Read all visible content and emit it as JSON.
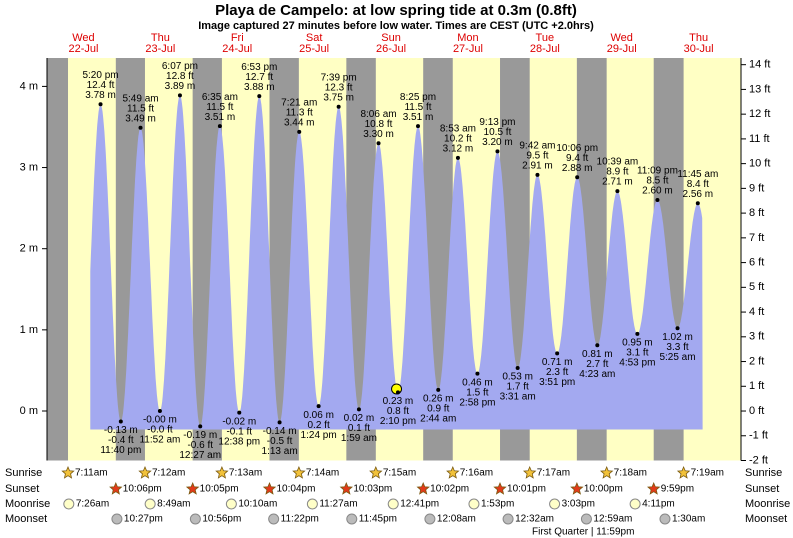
{
  "header": {
    "title": "Playa de Campelo: at low  spring tide at 0.3m (0.8ft)",
    "subtitle": "Image captured 27 minutes before low water. Times are CEST (UTC +2.0hrs)"
  },
  "chart_data": {
    "type": "area",
    "color": "#a3a9f0",
    "ylim": [
      -0.61,
      4.35
    ],
    "yticks": [
      {
        "value": 0,
        "label": "0 m"
      },
      {
        "value": 1,
        "label": "1 m"
      },
      {
        "value": 2,
        "label": "2 m"
      },
      {
        "value": 3,
        "label": "3 m"
      },
      {
        "value": 4,
        "label": "4 m"
      }
    ],
    "y2lim": [
      -2,
      14.27
    ],
    "y2ticks": [
      {
        "value": -2,
        "label": "-2 ft"
      },
      {
        "value": -1,
        "label": "-1 ft"
      },
      {
        "value": 0,
        "label": "0 ft"
      },
      {
        "value": 1,
        "label": "1 ft"
      },
      {
        "value": 2,
        "label": "2 ft"
      },
      {
        "value": 3,
        "label": "3 ft"
      },
      {
        "value": 4,
        "label": "4 ft"
      },
      {
        "value": 5,
        "label": "5 ft"
      },
      {
        "value": 6,
        "label": "6 ft"
      },
      {
        "value": 7,
        "label": "7 ft"
      },
      {
        "value": 8,
        "label": "8 ft"
      },
      {
        "value": 9,
        "label": "9 ft"
      },
      {
        "value": 10,
        "label": "10 ft"
      },
      {
        "value": 11,
        "label": "11 ft"
      },
      {
        "value": 12,
        "label": "12 ft"
      },
      {
        "value": 13,
        "label": "13 ft"
      },
      {
        "value": 14,
        "label": "14 ft"
      }
    ],
    "row_labels": [
      "Sunrise",
      "Sunset",
      "Moonrise",
      "Moonset"
    ],
    "days": [
      {
        "day": "Wed",
        "date": "22-Jul",
        "sunrise": "7:11am",
        "sunset": "10:06pm",
        "moonrise": "7:26am",
        "moonset": "10:27pm",
        "tides": [
          {
            "time": "5:20 pm",
            "m": 3.78,
            "m_label": "3.78 m",
            "ft": 12.4,
            "ft_label": "12.4 ft"
          },
          {
            "time": "11:40 pm",
            "m": -0.13,
            "m_label": "-0.13 m",
            "ft": -0.4,
            "ft_label": "-0.4 ft"
          }
        ]
      },
      {
        "day": "Thu",
        "date": "23-Jul",
        "sunrise": "7:12am",
        "sunset": "10:05pm",
        "moonrise": "8:49am",
        "moonset": "10:56pm",
        "tides": [
          {
            "time": "5:49 am",
            "m": 3.49,
            "m_label": "3.49 m",
            "ft": 11.5,
            "ft_label": "11.5 ft"
          },
          {
            "time": "11:52 am",
            "m": -0.0,
            "m_label": "-0.00 m",
            "ft": -0.0,
            "ft_label": "-0.0 ft"
          },
          {
            "time": "6:07 pm",
            "m": 3.89,
            "m_label": "3.89 m",
            "ft": 12.8,
            "ft_label": "12.8 ft"
          }
        ]
      },
      {
        "day": "Fri",
        "date": "24-Jul",
        "sunrise": "7:13am",
        "sunset": "10:04pm",
        "moonrise": "10:10am",
        "moonset": "11:22pm",
        "tides": [
          {
            "time": "12:27 am",
            "m": -0.19,
            "m_label": "-0.19 m",
            "ft": -0.6,
            "ft_label": "-0.6 ft"
          },
          {
            "time": "6:35 am",
            "m": 3.51,
            "m_label": "3.51 m",
            "ft": 11.5,
            "ft_label": "11.5 ft"
          },
          {
            "time": "12:38 pm",
            "m": -0.02,
            "m_label": "-0.02 m",
            "ft": -0.1,
            "ft_label": "-0.1 ft"
          },
          {
            "time": "6:53 pm",
            "m": 3.88,
            "m_label": "3.88 m",
            "ft": 12.7,
            "ft_label": "12.7 ft"
          }
        ]
      },
      {
        "day": "Sat",
        "date": "25-Jul",
        "sunrise": "7:14am",
        "sunset": "10:03pm",
        "moonrise": "11:27am",
        "moonset": "11:45pm",
        "tides": [
          {
            "time": "1:13 am",
            "m": -0.14,
            "m_label": "-0.14 m",
            "ft": -0.5,
            "ft_label": "-0.5 ft"
          },
          {
            "time": "7:21 am",
            "m": 3.44,
            "m_label": "3.44 m",
            "ft": 11.3,
            "ft_label": "11.3 ft"
          },
          {
            "time": "1:24 pm",
            "m": 0.06,
            "m_label": "0.06 m",
            "ft": 0.2,
            "ft_label": "0.2 ft"
          },
          {
            "time": "7:39 pm",
            "m": 3.75,
            "m_label": "3.75 m",
            "ft": 12.3,
            "ft_label": "12.3 ft"
          }
        ]
      },
      {
        "day": "Sun",
        "date": "26-Jul",
        "sunrise": "7:15am",
        "sunset": "10:02pm",
        "moonrise": "12:41pm",
        "moonset": null,
        "tides": [
          {
            "time": "1:59 am",
            "m": 0.02,
            "m_label": "0.02 m",
            "ft": 0.1,
            "ft_label": "0.1 ft"
          },
          {
            "time": "8:06 am",
            "m": 3.3,
            "m_label": "3.30 m",
            "ft": 10.8,
            "ft_label": "10.8 ft"
          },
          {
            "time": "2:10 pm",
            "m": 0.23,
            "m_label": "0.23 m",
            "ft": 0.8,
            "ft_label": "0.8 ft"
          },
          {
            "time": "8:25 pm",
            "m": 3.51,
            "m_label": "3.51 m",
            "ft": 11.5,
            "ft_label": "11.5 ft"
          }
        ]
      },
      {
        "day": "Mon",
        "date": "27-Jul",
        "sunrise": "7:16am",
        "sunset": "10:01pm",
        "moonrise": "1:53pm",
        "moonset": "12:08am",
        "tides": [
          {
            "time": "2:44 am",
            "m": 0.26,
            "m_label": "0.26 m",
            "ft": 0.9,
            "ft_label": "0.9 ft"
          },
          {
            "time": "8:53 am",
            "m": 3.12,
            "m_label": "3.12 m",
            "ft": 10.2,
            "ft_label": "10.2 ft"
          },
          {
            "time": "2:58 pm",
            "m": 0.46,
            "m_label": "0.46 m",
            "ft": 1.5,
            "ft_label": "1.5 ft"
          },
          {
            "time": "9:13 pm",
            "m": 3.2,
            "m_label": "3.20 m",
            "ft": 10.5,
            "ft_label": "10.5 ft"
          }
        ]
      },
      {
        "day": "Tue",
        "date": "28-Jul",
        "sunrise": "7:17am",
        "sunset": "10:00pm",
        "moonrise": "3:03pm",
        "moonset": "12:32am",
        "moon_phase": "First Quarter | 11:59pm",
        "tides": [
          {
            "time": "3:31 am",
            "m": 0.53,
            "m_label": "0.53 m",
            "ft": 1.7,
            "ft_label": "1.7 ft"
          },
          {
            "time": "9:42 am",
            "m": 2.91,
            "m_label": "2.91 m",
            "ft": 9.5,
            "ft_label": "9.5 ft"
          },
          {
            "time": "3:51 pm",
            "m": 0.71,
            "m_label": "0.71 m",
            "ft": 2.3,
            "ft_label": "2.3 ft"
          },
          {
            "time": "10:06 pm",
            "m": 2.88,
            "m_label": "2.88 m",
            "ft": 9.4,
            "ft_label": "9.4 ft"
          }
        ]
      },
      {
        "day": "Wed",
        "date": "29-Jul",
        "sunrise": "7:18am",
        "sunset": "9:59pm",
        "moonrise": "4:11pm",
        "moonset": "12:59am",
        "tides": [
          {
            "time": "4:23 am",
            "m": 0.81,
            "m_label": "0.81 m",
            "ft": 2.7,
            "ft_label": "2.7 ft"
          },
          {
            "time": "10:39 am",
            "m": 2.71,
            "m_label": "2.71 m",
            "ft": 8.9,
            "ft_label": "8.9 ft"
          },
          {
            "time": "4:53 pm",
            "m": 0.95,
            "m_label": "0.95 m",
            "ft": 3.1,
            "ft_label": "3.1 ft"
          },
          {
            "time": "11:09 pm",
            "m": 2.6,
            "m_label": "2.60 m",
            "ft": 8.5,
            "ft_label": "8.5 ft"
          }
        ]
      },
      {
        "day": "Thu",
        "date": "30-Jul",
        "sunrise": "7:19am",
        "sunset": null,
        "moonrise": null,
        "moonset": "1:30am",
        "tides": [
          {
            "time": "5:25 am",
            "m": 1.02,
            "m_label": "1.02 m",
            "ft": 3.3,
            "ft_label": "3.3 ft"
          },
          {
            "time": "11:45 am",
            "m": 2.56,
            "m_label": "2.56 m",
            "ft": 8.4,
            "ft_label": "8.4 ft"
          }
        ]
      }
    ]
  }
}
